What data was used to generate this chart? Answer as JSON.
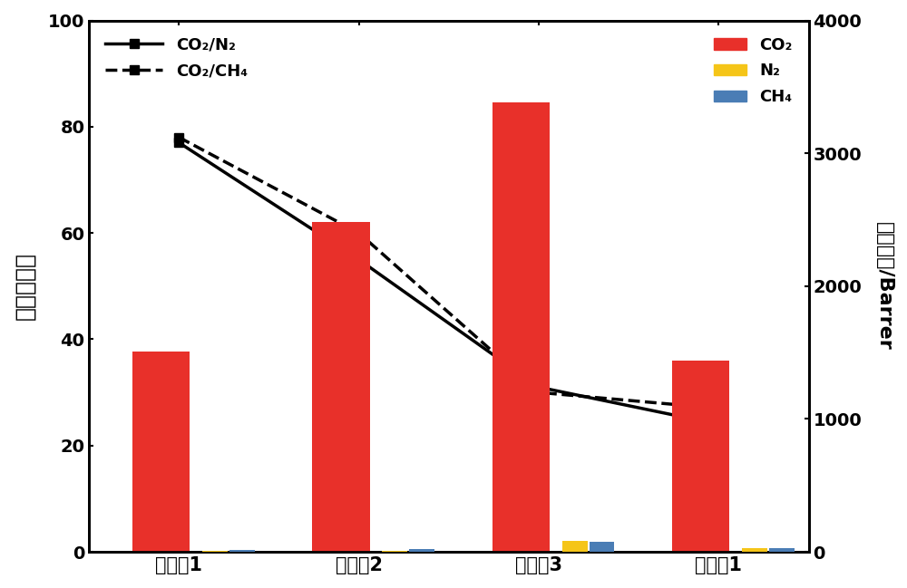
{
  "categories": [
    "实施奡1",
    "实施奡2",
    "实施奡3",
    "对比奡1"
  ],
  "co2_barrer": [
    1510,
    2480,
    3380,
    1440
  ],
  "n2_barrer": [
    8,
    8,
    80,
    28
  ],
  "ch4_barrer": [
    12,
    18,
    78,
    28
  ],
  "co2_n2_selectivity": [
    77,
    55,
    31,
    24
  ],
  "co2_ch4_selectivity": [
    78,
    60,
    30,
    27
  ],
  "left_ylim": [
    0,
    100
  ],
  "right_ylim": [
    0,
    4000
  ],
  "left_yticks": [
    0,
    20,
    40,
    60,
    80,
    100
  ],
  "right_yticks": [
    0,
    1000,
    2000,
    3000,
    4000
  ],
  "bar_colors": {
    "CO2": "#e8302a",
    "N2": "#f5c518",
    "CH4": "#4a7db5"
  },
  "line_color": "#000000",
  "left_ylabel": "理想选择性",
  "right_ylabel": "气体通量/Barrer",
  "legend_line1": "CO₂/N₂",
  "legend_line2": "CO₂/CH₄",
  "legend_bar1": "CO₂",
  "legend_bar2": "N₂",
  "legend_bar3": "CH₄",
  "figsize": [
    10.0,
    6.49
  ],
  "dpi": 100,
  "background_color": "#ffffff"
}
